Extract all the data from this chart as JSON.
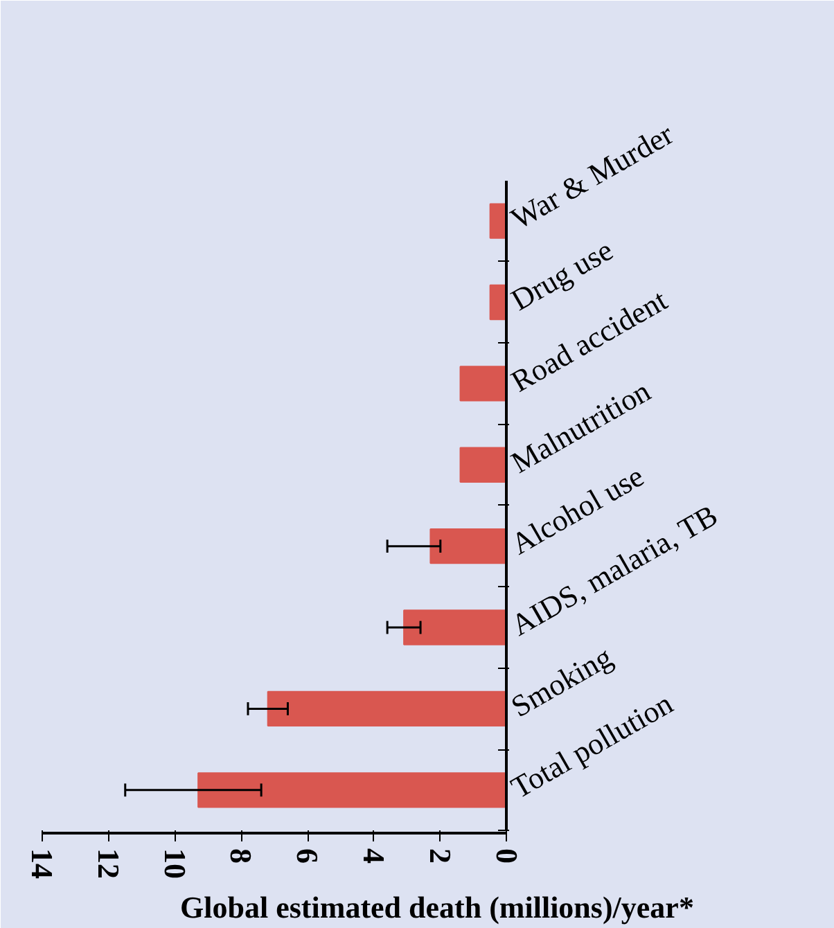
{
  "chart_data": {
    "type": "bar",
    "orientation": "horizontal",
    "xlabel": "Global estimated death (millions)/year*",
    "categories": [
      "War & Murder",
      "Drug use",
      "Road accident",
      "Malnutrition",
      "Alcohol use",
      "AIDS, malaria, TB",
      "Smoking",
      "Total pollution"
    ],
    "values": [
      0.5,
      0.5,
      1.4,
      1.4,
      2.3,
      3.1,
      7.2,
      9.3
    ],
    "errors": [
      null,
      null,
      null,
      null,
      [
        2.0,
        3.6
      ],
      [
        2.6,
        3.6
      ],
      [
        6.6,
        7.8
      ],
      [
        7.4,
        11.5
      ]
    ],
    "color": "#d95750",
    "xlim": [
      14,
      0
    ],
    "xticks": [
      0,
      2,
      4,
      6,
      8,
      10,
      12,
      14
    ],
    "grid": false
  }
}
